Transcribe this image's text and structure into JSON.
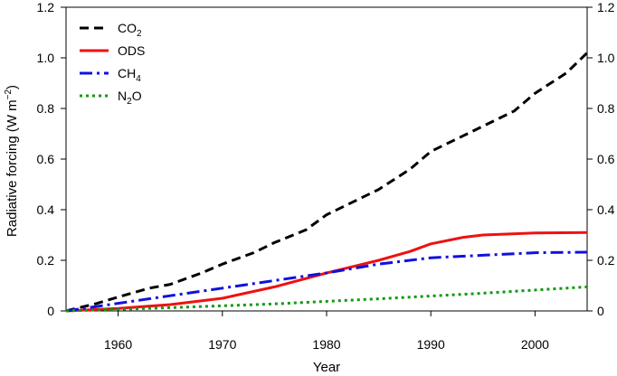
{
  "chart_data": {
    "type": "line",
    "xlabel": "Year",
    "ylabel": "Radiative forcing (W m",
    "ylabel_sup": "−2",
    "ylabel_close": ")",
    "xlim": [
      1955,
      2005
    ],
    "ylim": [
      0,
      1.2
    ],
    "xticks": [
      1960,
      1970,
      1980,
      1990,
      2000
    ],
    "yticks": [
      "0",
      "0.2",
      "0.4",
      "0.6",
      "0.8",
      "1.0",
      "1.2"
    ],
    "grid": false,
    "legend_position": "top-left",
    "series": [
      {
        "name": "CO",
        "name_sub": "2",
        "color": "#000000",
        "style": "dashed",
        "x": [
          1955,
          1958,
          1960,
          1963,
          1965,
          1968,
          1970,
          1973,
          1975,
          1978,
          1980,
          1983,
          1985,
          1988,
          1990,
          1993,
          1995,
          1998,
          2000,
          2003,
          2005
        ],
        "y": [
          0.0,
          0.03,
          0.055,
          0.09,
          0.105,
          0.15,
          0.185,
          0.23,
          0.27,
          0.32,
          0.38,
          0.44,
          0.48,
          0.56,
          0.63,
          0.69,
          0.73,
          0.79,
          0.86,
          0.94,
          1.02
        ]
      },
      {
        "name": "ODS",
        "name_sub": "",
        "color": "#ee1111",
        "style": "solid",
        "x": [
          1955,
          1960,
          1965,
          1970,
          1975,
          1980,
          1985,
          1988,
          1990,
          1993,
          1995,
          2000,
          2005
        ],
        "y": [
          0.0,
          0.01,
          0.025,
          0.05,
          0.095,
          0.15,
          0.2,
          0.235,
          0.265,
          0.29,
          0.3,
          0.308,
          0.31
        ]
      },
      {
        "name": "CH",
        "name_sub": "4",
        "color": "#1111dd",
        "style": "dashdot",
        "x": [
          1955,
          1960,
          1965,
          1970,
          1975,
          1980,
          1985,
          1990,
          1995,
          2000,
          2005
        ],
        "y": [
          0.0,
          0.03,
          0.06,
          0.09,
          0.12,
          0.15,
          0.185,
          0.21,
          0.22,
          0.23,
          0.232
        ]
      },
      {
        "name": "N",
        "name_sub": "2",
        "name_tail": "O",
        "color": "#119911",
        "style": "dotted",
        "x": [
          1955,
          1965,
          1975,
          1985,
          1995,
          2005
        ],
        "y": [
          0.0,
          0.013,
          0.028,
          0.048,
          0.07,
          0.095
        ]
      }
    ]
  }
}
